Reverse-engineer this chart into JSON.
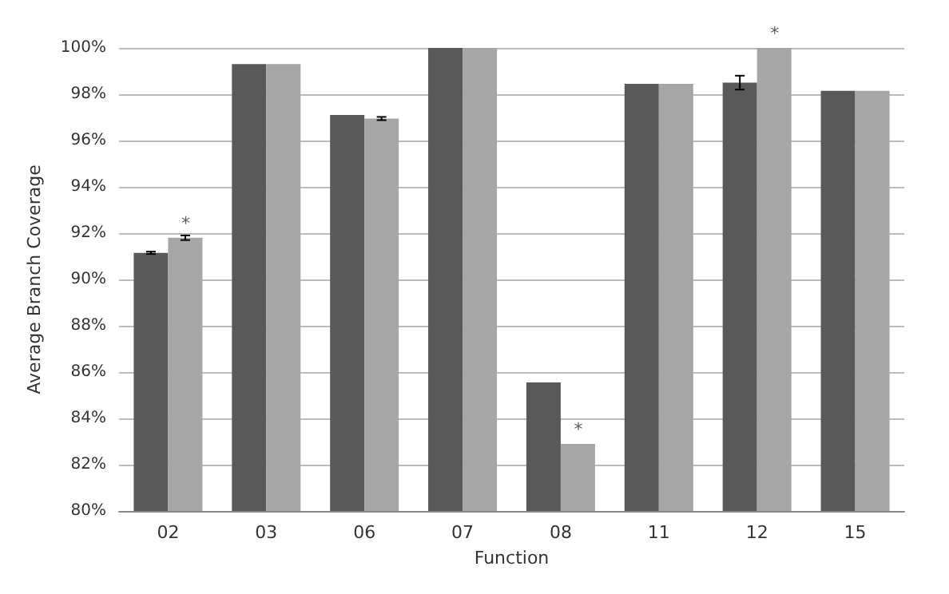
{
  "chart_data": {
    "type": "bar",
    "xlabel": "Function",
    "ylabel": "Average Branch Coverage",
    "categories": [
      "02",
      "03",
      "06",
      "07",
      "08",
      "11",
      "12",
      "15"
    ],
    "series": [
      {
        "color": "#595959",
        "values": [
          91.15,
          99.3,
          97.1,
          100,
          85.55,
          98.45,
          98.5,
          98.15
        ],
        "errors": [
          0.05,
          null,
          null,
          null,
          null,
          null,
          0.3,
          null
        ]
      },
      {
        "color": "#a6a6a6",
        "values": [
          91.8,
          99.3,
          96.95,
          100,
          82.9,
          98.45,
          100,
          98.15
        ],
        "errors": [
          0.1,
          null,
          0.07,
          null,
          null,
          null,
          null,
          null
        ]
      }
    ],
    "ylim": [
      80,
      100
    ],
    "yticks": [
      {
        "value": 80,
        "label": "80%"
      },
      {
        "value": 82,
        "label": "82%"
      },
      {
        "value": 84,
        "label": "84%"
      },
      {
        "value": 86,
        "label": "86%"
      },
      {
        "value": 88,
        "label": "88%"
      },
      {
        "value": 90,
        "label": "90%"
      },
      {
        "value": 92,
        "label": "92%"
      },
      {
        "value": 94,
        "label": "94%"
      },
      {
        "value": 96,
        "label": "96%"
      },
      {
        "value": 98,
        "label": "98%"
      },
      {
        "value": 100,
        "label": "100%"
      }
    ],
    "grid": "y",
    "annotations": [
      {
        "text": "*",
        "x": "02",
        "y": 91.8
      },
      {
        "text": "*",
        "x": "08",
        "y": 82.9
      },
      {
        "text": "*",
        "x": "12",
        "y": 100
      }
    ]
  }
}
